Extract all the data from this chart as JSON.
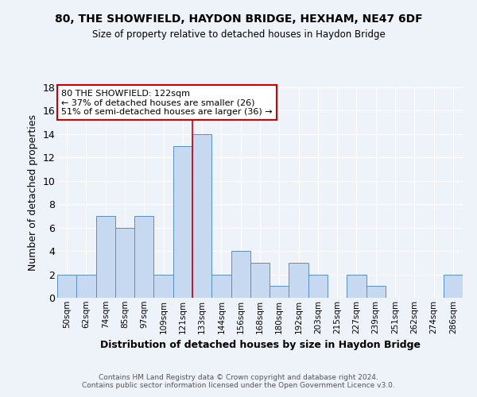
{
  "title": "80, THE SHOWFIELD, HAYDON BRIDGE, HEXHAM, NE47 6DF",
  "subtitle": "Size of property relative to detached houses in Haydon Bridge",
  "xlabel": "Distribution of detached houses by size in Haydon Bridge",
  "ylabel": "Number of detached properties",
  "bin_labels": [
    "50sqm",
    "62sqm",
    "74sqm",
    "85sqm",
    "97sqm",
    "109sqm",
    "121sqm",
    "133sqm",
    "144sqm",
    "156sqm",
    "168sqm",
    "180sqm",
    "192sqm",
    "203sqm",
    "215sqm",
    "227sqm",
    "239sqm",
    "251sqm",
    "262sqm",
    "274sqm",
    "286sqm"
  ],
  "bar_heights": [
    2,
    2,
    7,
    6,
    7,
    2,
    13,
    14,
    2,
    4,
    3,
    1,
    3,
    2,
    0,
    2,
    1,
    0,
    0,
    0,
    2
  ],
  "bar_color": "#c6d9f1",
  "bar_edge_color": "#5a8fc0",
  "ylim": [
    0,
    18
  ],
  "yticks": [
    0,
    2,
    4,
    6,
    8,
    10,
    12,
    14,
    16,
    18
  ],
  "annotation_line1": "80 THE SHOWFIELD: 122sqm",
  "annotation_line2": "← 37% of detached houses are smaller (26)",
  "annotation_line3": "51% of semi-detached houses are larger (36) →",
  "annotation_box_color": "#ffffff",
  "annotation_box_edge": "#cc0000",
  "vline_color": "#cc0000",
  "vline_x": 6.5,
  "background_color": "#eef2f9",
  "grid_color": "#ffffff",
  "footer": "Contains HM Land Registry data © Crown copyright and database right 2024.\nContains public sector information licensed under the Open Government Licence v3.0."
}
